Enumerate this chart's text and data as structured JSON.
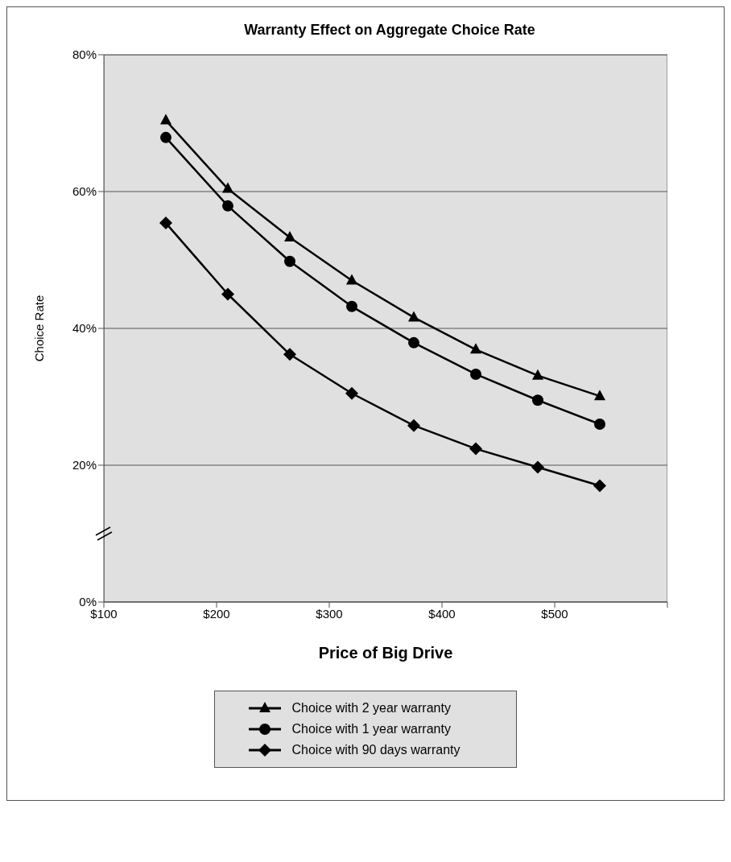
{
  "chart_data": {
    "type": "line",
    "title": "Warranty Effect on Aggregate Choice Rate",
    "xlabel": "Price of Big Drive",
    "ylabel": "Choice Rate",
    "x": [
      155,
      210,
      265,
      320,
      375,
      430,
      485,
      540
    ],
    "series": [
      {
        "name": "Choice with 2 year warranty",
        "color": "#000000",
        "marker": "triangle",
        "values": [
          70.4,
          60.4,
          53.3,
          47.0,
          41.6,
          36.9,
          33.1,
          30.1
        ]
      },
      {
        "name": "Choice with 1 year warranty",
        "color": "#000000",
        "marker": "circle",
        "values": [
          67.9,
          57.9,
          49.8,
          43.2,
          37.9,
          33.3,
          29.5,
          26.0
        ]
      },
      {
        "name": "Choice with 90 days warranty",
        "color": "#000000",
        "marker": "diamond",
        "values": [
          55.4,
          45.0,
          36.2,
          30.5,
          25.8,
          22.4,
          19.7,
          17.0
        ]
      }
    ],
    "xlim": [
      100,
      600
    ],
    "xticks": [
      {
        "value": 100,
        "label": "$100"
      },
      {
        "value": 200,
        "label": "$200"
      },
      {
        "value": 300,
        "label": "$300"
      },
      {
        "value": 400,
        "label": "$400"
      },
      {
        "value": 500,
        "label": "$500"
      },
      {
        "value": 600,
        "label": null
      }
    ],
    "ylim": [
      0,
      80
    ],
    "yticks": [
      {
        "value": 0,
        "label": "0%"
      },
      {
        "value": 20,
        "label": "20%"
      },
      {
        "value": 40,
        "label": "40%"
      },
      {
        "value": 60,
        "label": "60%"
      },
      {
        "value": 80,
        "label": "80%"
      }
    ],
    "grid": "y",
    "legend": "bottom",
    "line_style": "solid"
  }
}
